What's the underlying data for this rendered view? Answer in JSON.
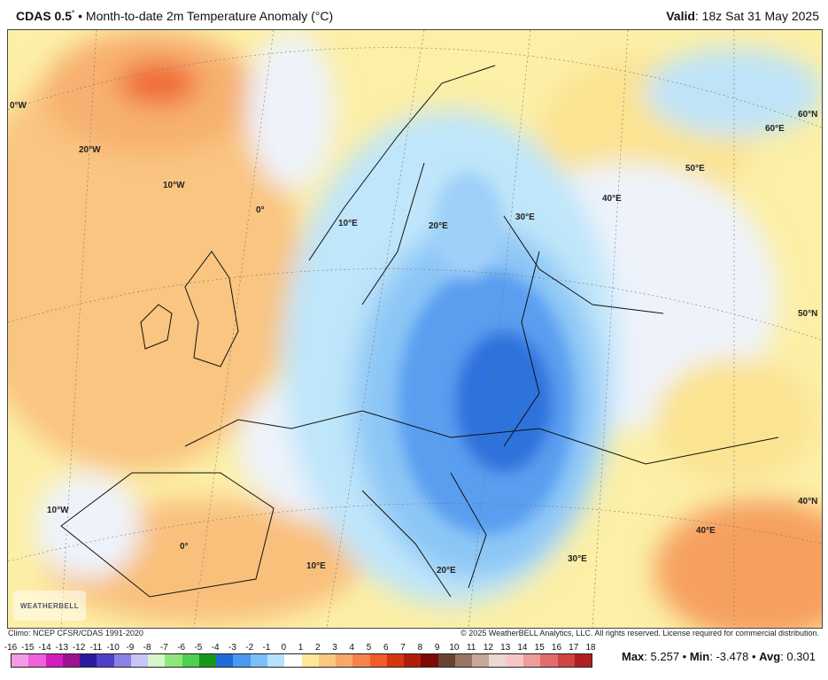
{
  "header": {
    "model": "CDAS 0.5",
    "degree": "°",
    "sep": " • ",
    "product": "Month-to-date 2m Temperature Anomaly (°C)",
    "valid_label": "Valid",
    "valid_value": ": 18z Sat 31 May 2025"
  },
  "map": {
    "logo_text": "WEATHERBELL",
    "labels": [
      "0°W",
      "20°W",
      "10°W",
      "0°",
      "10°E",
      "20°E",
      "30°E",
      "40°E",
      "50°E",
      "60°E",
      "60°N",
      "50°N",
      "40°N",
      "10°W",
      "0°",
      "10°E",
      "20°E",
      "30°E",
      "40°E"
    ]
  },
  "footer": {
    "climo": "Climo: NCEP CFSR/CDAS 1991-2020",
    "copyright": "© 2025 WeatherBELL Analytics, LLC. All rights reserved. License required for commercial distribution."
  },
  "colorbar": {
    "ticks": [
      "-16",
      "-15",
      "-14",
      "-13",
      "-12",
      "-11",
      "-10",
      "-9",
      "-8",
      "-7",
      "-6",
      "-5",
      "-4",
      "-3",
      "-2",
      "-1",
      "0",
      "1",
      "2",
      "3",
      "4",
      "5",
      "6",
      "7",
      "8",
      "9",
      "10",
      "11",
      "12",
      "13",
      "14",
      "15",
      "16",
      "17",
      "18"
    ],
    "colors": [
      "#f49be8",
      "#ee60dc",
      "#d21ebe",
      "#9a1490",
      "#2c1a9e",
      "#5040c8",
      "#8a80e6",
      "#c8c4f4",
      "#d8f4cc",
      "#90e67c",
      "#50d050",
      "#149a18",
      "#1e6cd6",
      "#4a98f2",
      "#7cbef8",
      "#b6e2fb",
      "#ffffff",
      "#fde89a",
      "#fbc880",
      "#f9a868",
      "#f6844a",
      "#f25c28",
      "#d8340f",
      "#b01e0a",
      "#7c0a06",
      "#6a4232",
      "#9a7462",
      "#c8a898",
      "#ecd8d0",
      "#f6c6c6",
      "#ee9c9c",
      "#e26c6c",
      "#d04444",
      "#b02020"
    ]
  },
  "stats": {
    "max_label": "Max",
    "max_value": ": 5.257",
    "min_label": "Min",
    "min_value": ": -3.478",
    "avg_label": "Avg",
    "avg_value": ": 0.301",
    "sep": " • "
  }
}
